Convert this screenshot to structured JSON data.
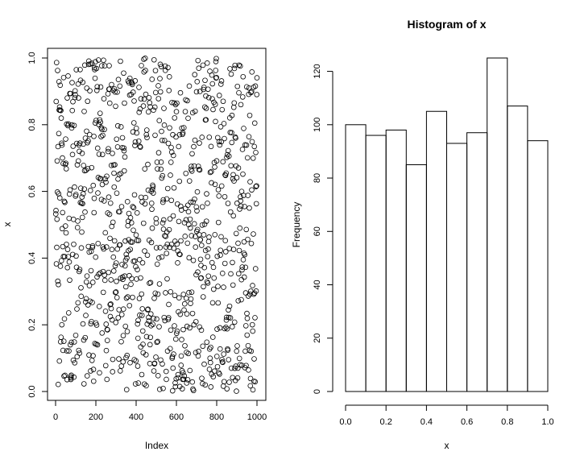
{
  "chart_data": [
    {
      "type": "scatter",
      "title": "",
      "xlabel": "Index",
      "ylabel": "x",
      "xlim": [
        0,
        1000
      ],
      "ylim": [
        0,
        1
      ],
      "x_ticks": [
        0,
        200,
        400,
        600,
        800,
        1000
      ],
      "x_tick_labels": [
        "0",
        "200",
        "400",
        "600",
        "800",
        "1000"
      ],
      "y_ticks": [
        0,
        0.2,
        0.4,
        0.6,
        0.8,
        1
      ],
      "y_tick_labels": [
        "0.0",
        "0.2",
        "0.4",
        "0.6",
        "0.8",
        "1.0"
      ],
      "point_count": 1000,
      "marker": "open-circle",
      "grid": false,
      "legend": "none"
    },
    {
      "type": "bar",
      "title": "Histogram of x",
      "xlabel": "x",
      "ylabel": "Frequency",
      "xlim": [
        0,
        1
      ],
      "ylim": [
        0,
        125
      ],
      "bin_edges": [
        0,
        0.1,
        0.2,
        0.3,
        0.4,
        0.5,
        0.6,
        0.7,
        0.8,
        0.9,
        1.0
      ],
      "values": [
        100,
        96,
        98,
        85,
        105,
        93,
        97,
        125,
        107,
        94
      ],
      "x_ticks": [
        0,
        0.2,
        0.4,
        0.6,
        0.8,
        1
      ],
      "x_tick_labels": [
        "0.0",
        "0.2",
        "0.4",
        "0.6",
        "0.8",
        "1.0"
      ],
      "y_ticks": [
        0,
        20,
        40,
        60,
        80,
        100,
        120
      ],
      "y_tick_labels": [
        "0",
        "20",
        "40",
        "60",
        "80",
        "100",
        "120"
      ],
      "grid": false,
      "legend": "none"
    }
  ]
}
